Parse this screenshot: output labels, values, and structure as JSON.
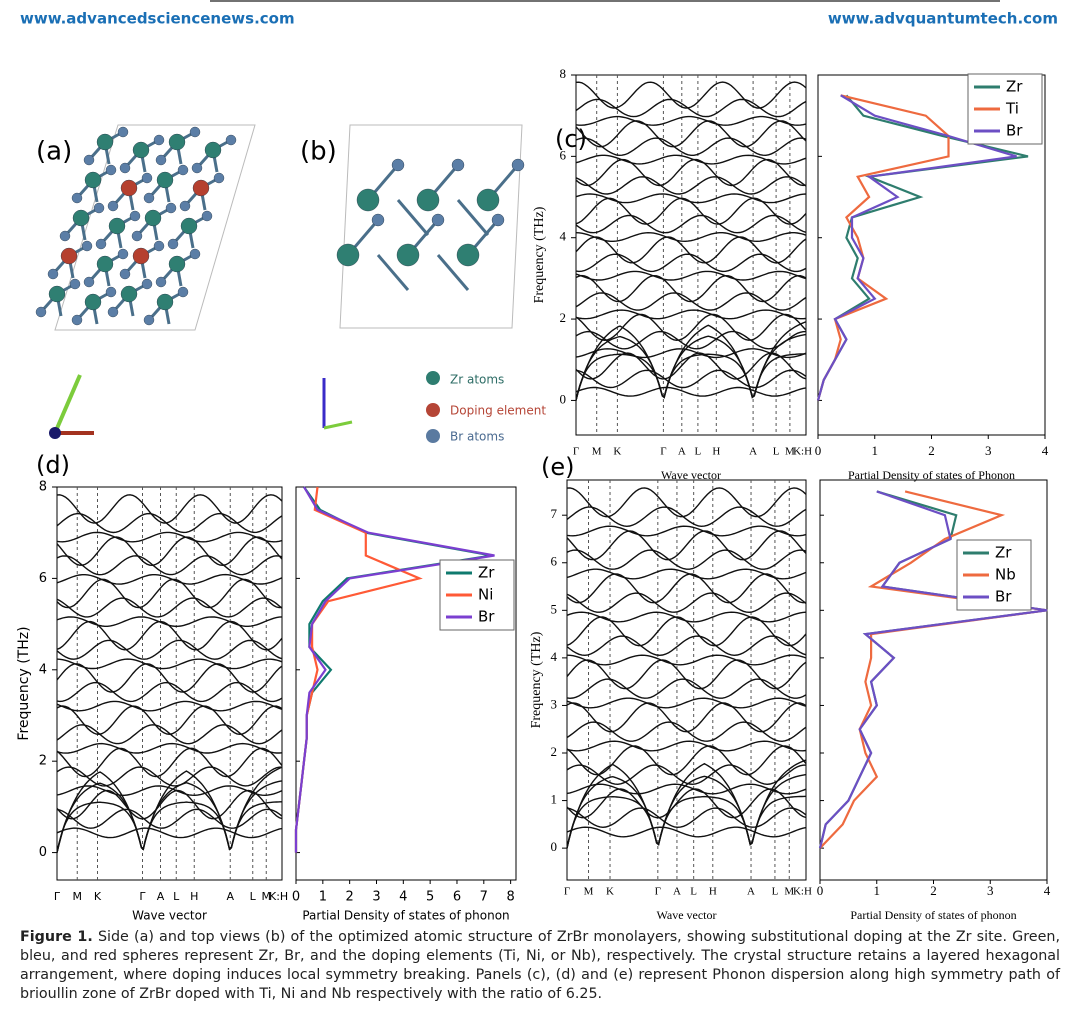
{
  "header": {
    "left": "www.advancedsciencenews.com",
    "right": "www.advquantumtech.com"
  },
  "figure": {
    "panel_a": "(a)",
    "panel_b": "(b)",
    "atom_legend": [
      "Zr atoms",
      "Doping element",
      "Br atoms"
    ],
    "chart_data": [
      {
        "type": "line",
        "panel": "(c)",
        "ylabel": "Frequency (THz)",
        "xlabel": "Wave vector",
        "categories": [
          "Γ",
          "M",
          "K",
          "Γ",
          "A",
          "L",
          "H",
          "A",
          "L",
          "M",
          "K:H"
        ],
        "ylim": [
          -0.85,
          8
        ],
        "yticks": [
          0,
          2,
          4,
          6,
          8
        ],
        "dos": {
          "xlabel": "Partial Density of states of Phonon",
          "xlim": [
            0,
            4
          ],
          "xticks": [
            0,
            1,
            2,
            3,
            4
          ],
          "frequencies": [
            0,
            0.5,
            1,
            1.5,
            2,
            2.5,
            3,
            3.5,
            4,
            4.5,
            5,
            5.5,
            6,
            6.5,
            7,
            7.5
          ],
          "series": [
            {
              "name": "Zr",
              "color": "#2e7d6e",
              "values": [
                0,
                0.1,
                0.3,
                0.5,
                0.3,
                0.9,
                0.6,
                0.7,
                0.5,
                0.6,
                1.8,
                0.9,
                3.7,
                2.2,
                0.8,
                0.5
              ]
            },
            {
              "name": "Ti",
              "color": "#ee6a3f",
              "values": [
                0,
                0.1,
                0.3,
                0.4,
                0.3,
                1.2,
                0.7,
                0.8,
                0.7,
                0.5,
                0.9,
                0.7,
                2.3,
                2.3,
                1.9,
                0.4
              ]
            },
            {
              "name": "Br",
              "color": "#6c4fc4",
              "values": [
                0,
                0.1,
                0.3,
                0.5,
                0.3,
                1.0,
                0.7,
                0.8,
                0.6,
                0.6,
                1.4,
                0.9,
                3.5,
                2.3,
                1.0,
                0.4
              ]
            }
          ]
        }
      },
      {
        "type": "line",
        "panel": "(d)",
        "ylabel": "Frequency (THz)",
        "xlabel": "Wave vector",
        "categories": [
          "Γ",
          "M",
          "K",
          "Γ",
          "A",
          "L",
          "H",
          "A",
          "L",
          "M",
          "K:H"
        ],
        "ylim": [
          -0.6,
          8
        ],
        "yticks": [
          0,
          2,
          4,
          6,
          8
        ],
        "dos": {
          "xlabel": "Partial Density of states of phonon",
          "xlim": [
            0,
            8.2
          ],
          "xticks": [
            0,
            1,
            2,
            3,
            4,
            5,
            6,
            7,
            8
          ],
          "frequencies": [
            0,
            0.5,
            1,
            1.5,
            2,
            2.5,
            3,
            3.5,
            4,
            4.5,
            5,
            5.5,
            6,
            6.5,
            7,
            7.5,
            8
          ],
          "series": [
            {
              "name": "Zr",
              "color": "#0f7a6e",
              "values": [
                0,
                0,
                0.1,
                0.2,
                0.3,
                0.4,
                0.4,
                0.6,
                1.3,
                0.5,
                0.5,
                1.0,
                1.9,
                7.3,
                2.6,
                0.9,
                0.3
              ]
            },
            {
              "name": "Ni",
              "color": "#ff5a36",
              "values": [
                0,
                0,
                0.1,
                0.2,
                0.3,
                0.4,
                0.4,
                0.6,
                0.8,
                0.6,
                0.6,
                1.2,
                4.6,
                2.6,
                2.6,
                0.7,
                0.8
              ]
            },
            {
              "name": "Br",
              "color": "#7b3fd0",
              "values": [
                0,
                0,
                0.1,
                0.2,
                0.3,
                0.4,
                0.4,
                0.5,
                1.1,
                0.5,
                0.6,
                1.1,
                2.0,
                7.4,
                2.7,
                0.8,
                0.3
              ]
            }
          ]
        }
      },
      {
        "type": "line",
        "panel": "(e)",
        "ylabel": "Frequency (THz)",
        "xlabel": "Wave vector",
        "categories": [
          "Γ",
          "M",
          "K",
          "Γ",
          "A",
          "L",
          "H",
          "A",
          "L",
          "M",
          "K:H"
        ],
        "ylim": [
          -0.67,
          7.74
        ],
        "yticks": [
          0,
          1,
          2,
          3,
          4,
          5,
          6,
          7
        ],
        "dos": {
          "xlabel": "Partial Density of states of phonon",
          "xlim": [
            0,
            4
          ],
          "xticks": [
            0,
            1,
            2,
            3,
            4
          ],
          "frequencies": [
            0,
            0.5,
            1,
            1.5,
            2,
            2.5,
            3,
            3.5,
            4,
            4.5,
            5,
            5.5,
            6,
            6.5,
            7,
            7.5
          ],
          "series": [
            {
              "name": "Zr",
              "color": "#2e7d6e",
              "values": [
                0,
                0.1,
                0.5,
                0.7,
                0.9,
                0.7,
                1.0,
                0.9,
                1.3,
                0.8,
                4.0,
                1.1,
                1.4,
                2.3,
                2.4,
                1.0
              ]
            },
            {
              "name": "Nb",
              "color": "#ee6a3f",
              "values": [
                0,
                0.4,
                0.6,
                1.0,
                0.8,
                0.7,
                0.9,
                0.8,
                0.9,
                0.9,
                4.0,
                0.9,
                1.6,
                2.2,
                3.2,
                1.5
              ]
            },
            {
              "name": "Br",
              "color": "#6c4fc4",
              "values": [
                0,
                0.1,
                0.5,
                0.7,
                0.9,
                0.7,
                1.0,
                0.9,
                1.3,
                0.8,
                4.0,
                1.1,
                1.4,
                2.3,
                2.2,
                1.0
              ]
            }
          ]
        }
      }
    ]
  },
  "caption": {
    "label": "Figure 1.",
    "text": "Side (a) and top views (b) of the optimized atomic structure of ZrBr monolayers, showing substitutional doping at the Zr site. Green, bleu, and red spheres represent Zr, Br, and the doping elements (Ti, Ni, or Nb), respectively. The crystal structure retains a layered hexagonal arrangement, where doping induces local symmetry breaking. Panels (c), (d) and (e) represent Phonon dispersion along high symmetry path of brioullin zone of ZrBr doped with Ti, Ni and Nb respectively with the ratio of 6.25."
  }
}
